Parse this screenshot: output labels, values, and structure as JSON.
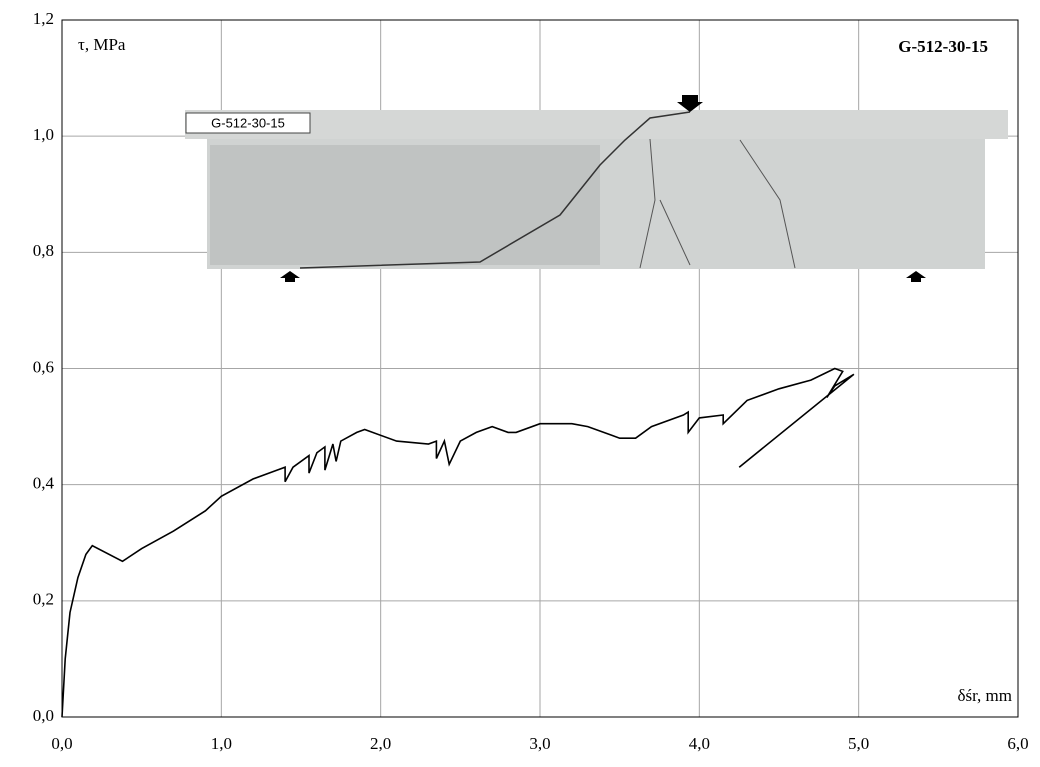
{
  "chart_data": {
    "type": "line",
    "title": "G-512-30-15",
    "y_label": "τ, MPa",
    "x_label": "δśr, mm",
    "photo_label": "G-512-30-15",
    "grid": true,
    "xlim": [
      0,
      6
    ],
    "ylim": [
      0,
      1.2
    ],
    "xticks": [
      {
        "value": 0,
        "label": "0,0"
      },
      {
        "value": 1,
        "label": "1,0"
      },
      {
        "value": 2,
        "label": "2,0"
      },
      {
        "value": 3,
        "label": "3,0"
      },
      {
        "value": 4,
        "label": "4,0"
      },
      {
        "value": 5,
        "label": "5,0"
      },
      {
        "value": 6,
        "label": "6,0"
      }
    ],
    "yticks": [
      {
        "value": 0,
        "label": "0,0"
      },
      {
        "value": 0.2,
        "label": "0,2"
      },
      {
        "value": 0.4,
        "label": "0,4"
      },
      {
        "value": 0.6,
        "label": "0,6"
      },
      {
        "value": 0.8,
        "label": "0,8"
      },
      {
        "value": 1.0,
        "label": "1,0"
      },
      {
        "value": 1.2,
        "label": "1,2"
      }
    ],
    "series": [
      {
        "color": "#000000",
        "x": [
          0,
          0.02,
          0.05,
          0.1,
          0.15,
          0.19,
          0.38,
          0.5,
          0.7,
          0.9,
          1.0,
          1.2,
          1.35,
          1.4,
          1.4,
          1.45,
          1.55,
          1.55,
          1.6,
          1.65,
          1.65,
          1.7,
          1.72,
          1.75,
          1.85,
          1.9,
          2.1,
          2.3,
          2.35,
          2.35,
          2.4,
          2.43,
          2.5,
          2.6,
          2.7,
          2.8,
          2.85,
          3.0,
          3.2,
          3.3,
          3.45,
          3.5,
          3.6,
          3.7,
          3.9,
          3.93,
          3.93,
          4.0,
          4.15,
          4.15,
          4.3,
          4.5,
          4.7,
          4.85,
          4.9,
          4.8,
          4.85,
          4.97,
          4.25
        ],
        "values": [
          0,
          0.1,
          0.18,
          0.24,
          0.28,
          0.295,
          0.268,
          0.29,
          0.32,
          0.355,
          0.38,
          0.41,
          0.425,
          0.43,
          0.405,
          0.43,
          0.45,
          0.42,
          0.455,
          0.465,
          0.425,
          0.47,
          0.44,
          0.475,
          0.49,
          0.495,
          0.475,
          0.47,
          0.475,
          0.445,
          0.475,
          0.435,
          0.475,
          0.49,
          0.5,
          0.49,
          0.49,
          0.505,
          0.505,
          0.5,
          0.485,
          0.48,
          0.48,
          0.5,
          0.52,
          0.525,
          0.49,
          0.515,
          0.52,
          0.505,
          0.545,
          0.565,
          0.58,
          0.6,
          0.595,
          0.55,
          0.57,
          0.59,
          0.43
        ]
      }
    ]
  }
}
